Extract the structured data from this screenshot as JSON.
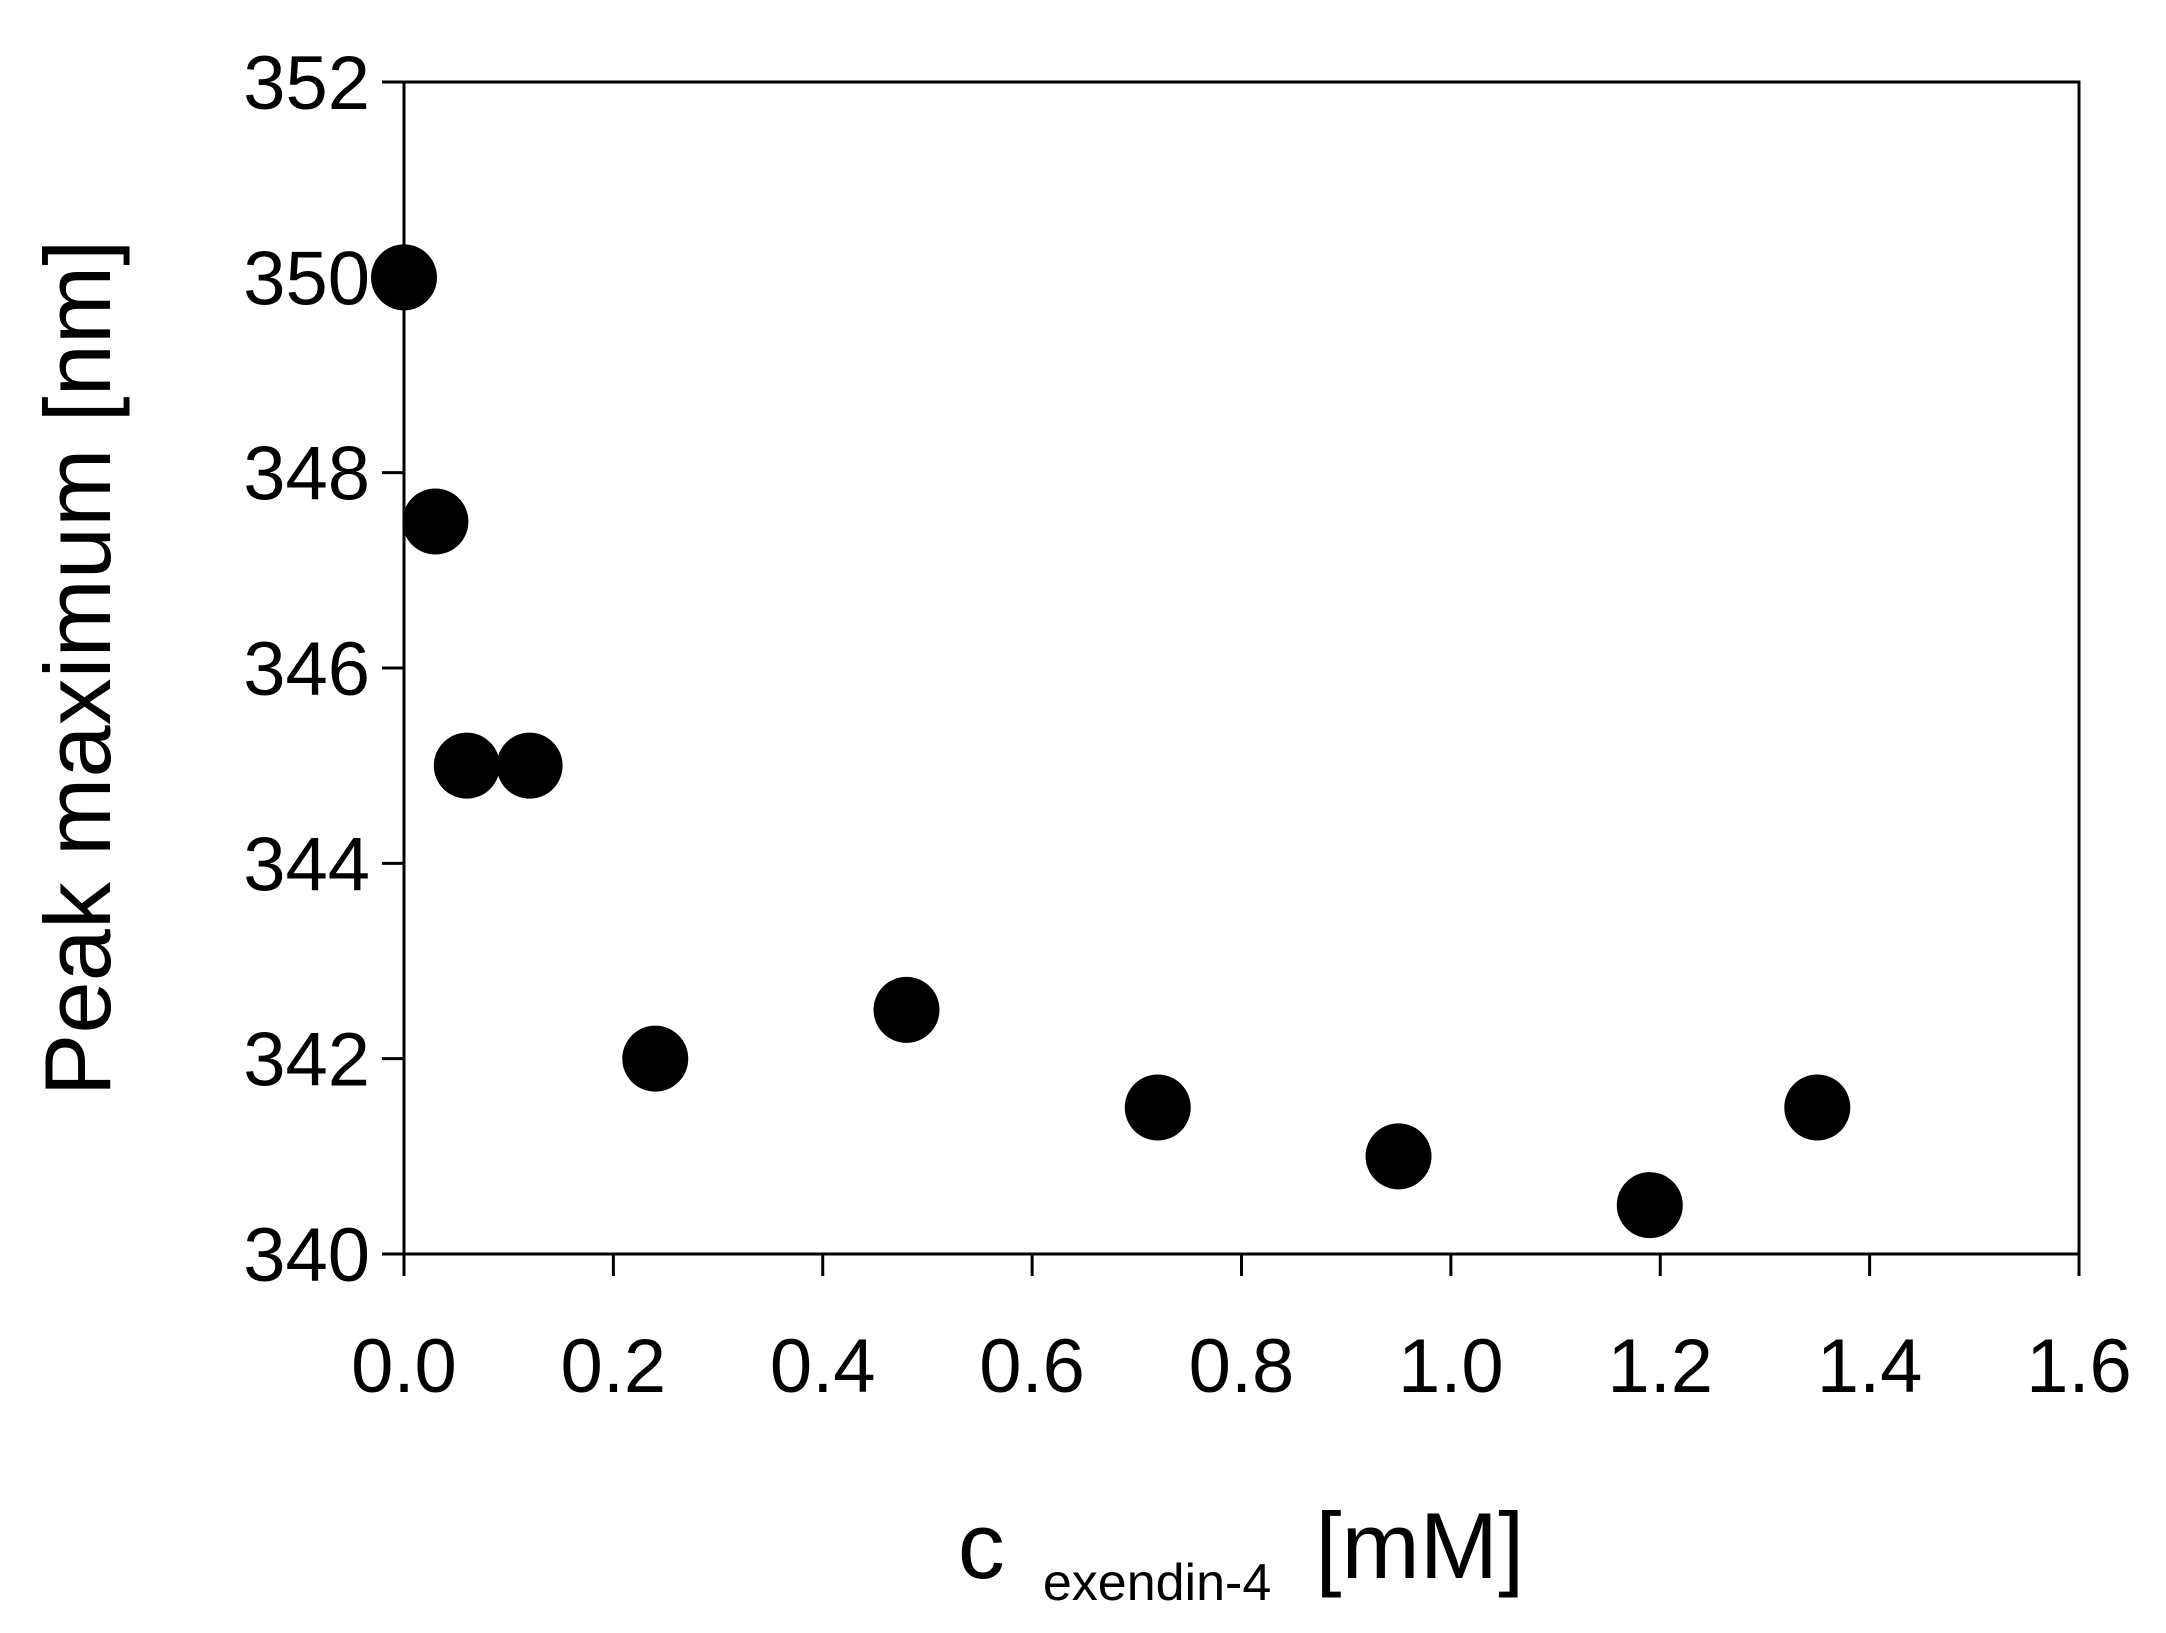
{
  "chart_data": {
    "type": "scatter",
    "title": "",
    "xlabel": "c",
    "xlabel_sub": "exendin-4",
    "xlabel_unit": "[mM]",
    "ylabel": "Peak maximum [nm]",
    "xlim": [
      0.0,
      1.6
    ],
    "ylim": [
      340,
      352
    ],
    "xticks": [
      "0.0",
      "0.2",
      "0.4",
      "0.6",
      "0.8",
      "1.0",
      "1.2",
      "1.4",
      "1.6"
    ],
    "yticks": [
      "340",
      "342",
      "344",
      "346",
      "348",
      "350",
      "352"
    ],
    "grid": false,
    "marker_color": "#000000",
    "points": [
      {
        "x": 0.0,
        "y": 350.0
      },
      {
        "x": 0.03,
        "y": 347.5
      },
      {
        "x": 0.06,
        "y": 345.0
      },
      {
        "x": 0.12,
        "y": 345.0
      },
      {
        "x": 0.24,
        "y": 342.0
      },
      {
        "x": 0.48,
        "y": 342.5
      },
      {
        "x": 0.72,
        "y": 341.5
      },
      {
        "x": 0.95,
        "y": 341.0
      },
      {
        "x": 1.19,
        "y": 340.5
      },
      {
        "x": 1.35,
        "y": 341.5
      }
    ]
  }
}
